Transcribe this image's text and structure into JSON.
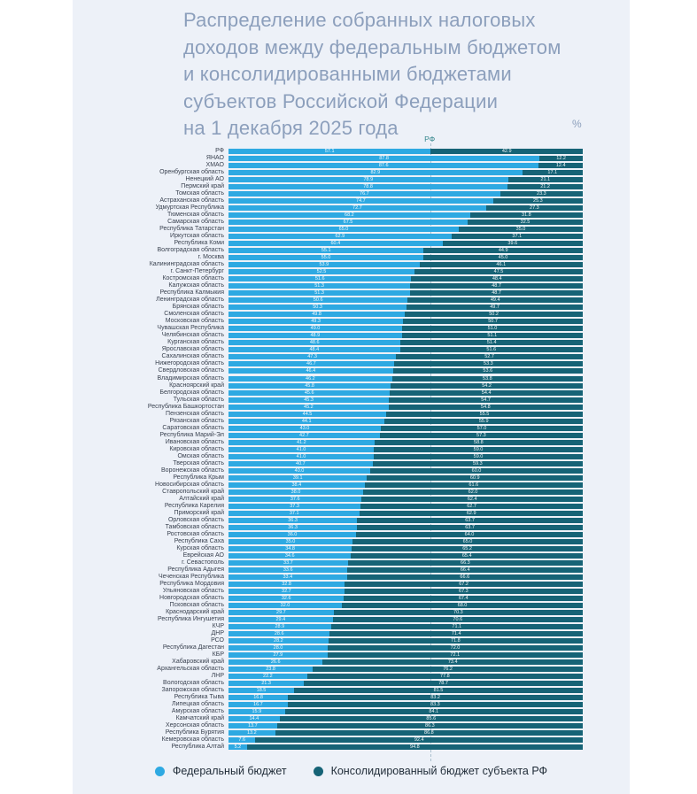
{
  "title": {
    "lines": [
      "Распределение собранных налоговых",
      "доходов между федеральным бюджетом",
      "и консолидированными бюджетами",
      "субъектов Российской Федерации",
      "на 1 декабря 2025 года"
    ]
  },
  "axis": {
    "percent_label": "%",
    "xlim": [
      0,
      100
    ]
  },
  "rf_marker": {
    "label": "РФ",
    "value": 57.1
  },
  "colors": {
    "panel_background": "#EDF1F8",
    "federal": "#2EA9E2",
    "consolidated": "#166376",
    "title_text": "#8C9FBC",
    "rf_marker_text": "#35878D"
  },
  "legend": {
    "items": [
      {
        "label": "Федеральный бюджет",
        "color": "#2EA9E2"
      },
      {
        "label": "Консолидированный бюджет субъекта РФ",
        "color": "#166376"
      }
    ]
  },
  "chart_data": {
    "type": "bar",
    "orientation": "horizontal",
    "stacked": true,
    "title": "Распределение собранных налоговых доходов между федеральным бюджетом и консолидированными бюджетами субъектов Российской Федерации на 1 декабря 2025 года",
    "unit": "%",
    "xlim": [
      0,
      100
    ],
    "reference_line": {
      "label": "РФ",
      "value": 57.1
    },
    "legend_position": "bottom",
    "categories": [
      "РФ",
      "ЯНАО",
      "ХМАО",
      "Оренбургская область",
      "Ненецкий АО",
      "Пермский край",
      "Томская область",
      "Астраханская область",
      "Удмуртская Республика",
      "Тюменская область",
      "Самарская область",
      "Республика Татарстан",
      "Иркутская область",
      "Республика Коми",
      "Волгоградская область",
      "г. Москва",
      "Калининградская область",
      "г. Санкт-Петербург",
      "Костромская область",
      "Калужская область",
      "Республика Калмыкия",
      "Ленинградская область",
      "Брянская область",
      "Смоленская область",
      "Московская область",
      "Чувашская Республика",
      "Челябинская область",
      "Курганская область",
      "Ярославская область",
      "Сахалинская область",
      "Нижегородская область",
      "Свердловская область",
      "Владимирская область",
      "Красноярский край",
      "Белгородская область",
      "Тульская область",
      "Республика Башкортостан",
      "Пензенская область",
      "Рязанская область",
      "Саратовская область",
      "Республика Марий-Эл",
      "Ивановская область",
      "Кировская область",
      "Омская область",
      "Тверская область",
      "Воронежская область",
      "Республика Крым",
      "Новосибирская область",
      "Ставропольский край",
      "Алтайский край",
      "Республика Карелия",
      "Приморский край",
      "Орловская область",
      "Тамбовская область",
      "Ростовская область",
      "Республика Саха",
      "Курская область",
      "Еврейская АО",
      "г. Севастополь",
      "Республика Адыгея",
      "Чеченская Республика",
      "Республика Мордовия",
      "Ульяновская область",
      "Новгородская область",
      "Псковская область",
      "Краснодарский край",
      "Республика Ингушетия",
      "КЧР",
      "ДНР",
      "РСО",
      "Республика Дагестан",
      "КБР",
      "Хабаровский край",
      "Архангельская область",
      "ЛНР",
      "Вологодская область",
      "Запорожская область",
      "Республика Тыва",
      "Липецкая область",
      "Амурская область",
      "Камчатский край",
      "Херсонская область",
      "Республика Бурятия",
      "Кемеровская область",
      "Республика Алтай"
    ],
    "series": [
      {
        "name": "Федеральный бюджет",
        "color": "#2EA9E2",
        "values": [
          57.1,
          87.8,
          87.6,
          82.9,
          78.9,
          78.8,
          76.7,
          74.7,
          72.7,
          68.2,
          67.5,
          65.0,
          62.9,
          60.4,
          55.1,
          55.0,
          53.9,
          52.5,
          51.6,
          51.3,
          51.3,
          50.6,
          50.3,
          49.8,
          49.3,
          49.0,
          48.9,
          48.6,
          48.4,
          47.3,
          46.7,
          46.4,
          46.2,
          45.8,
          45.6,
          45.3,
          45.2,
          44.5,
          44.1,
          43.0,
          42.7,
          41.2,
          41.0,
          41.0,
          40.7,
          40.0,
          39.1,
          38.4,
          38.0,
          37.6,
          37.3,
          37.1,
          36.3,
          36.3,
          36.0,
          35.0,
          34.8,
          34.6,
          33.7,
          33.6,
          33.4,
          32.8,
          32.7,
          32.6,
          32.0,
          29.7,
          29.4,
          28.9,
          28.6,
          28.2,
          28.0,
          27.9,
          26.6,
          23.8,
          22.2,
          21.3,
          18.5,
          16.8,
          16.7,
          15.9,
          14.4,
          13.7,
          13.2,
          7.6,
          5.2
        ]
      },
      {
        "name": "Консолидированный бюджет субъекта РФ",
        "color": "#166376",
        "values": [
          42.9,
          12.2,
          12.4,
          17.1,
          21.1,
          21.2,
          23.3,
          25.3,
          27.3,
          31.8,
          32.5,
          35.0,
          37.1,
          39.6,
          44.9,
          45.0,
          46.1,
          47.5,
          48.4,
          48.7,
          48.7,
          49.4,
          49.7,
          50.2,
          50.7,
          51.0,
          51.1,
          51.4,
          51.6,
          52.7,
          53.3,
          53.6,
          53.8,
          54.2,
          54.4,
          54.7,
          54.8,
          55.5,
          55.9,
          57.0,
          57.3,
          58.8,
          59.0,
          59.0,
          59.3,
          60.0,
          60.9,
          61.6,
          62.0,
          62.4,
          62.7,
          62.9,
          63.7,
          63.7,
          64.0,
          65.0,
          65.2,
          65.4,
          66.3,
          66.4,
          66.6,
          67.2,
          67.3,
          67.4,
          68.0,
          70.3,
          70.6,
          71.1,
          71.4,
          71.8,
          72.0,
          72.1,
          73.4,
          76.2,
          77.8,
          78.7,
          81.5,
          83.2,
          83.3,
          84.1,
          85.6,
          86.3,
          86.8,
          92.4,
          94.8
        ]
      }
    ]
  }
}
